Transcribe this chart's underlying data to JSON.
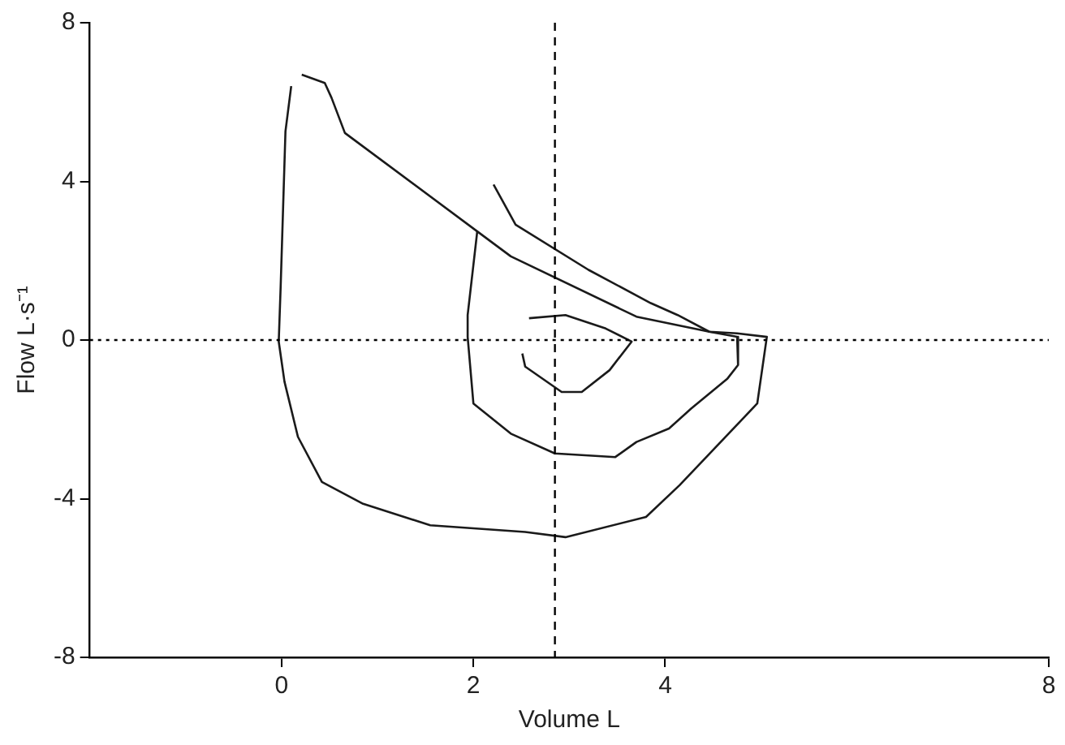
{
  "chart_data": {
    "type": "line",
    "xlabel": "Volume L",
    "ylabel": "Flow L·s⁻¹",
    "xlim": [
      -2,
      8
    ],
    "xticks": [
      0,
      2,
      4,
      8
    ],
    "ylim": [
      -8,
      8
    ],
    "yticks": [
      -8,
      -4,
      0,
      4,
      8
    ],
    "grid": false,
    "legend": false,
    "marker": "none",
    "line_style": "solid",
    "ref_lines": [
      {
        "axis": "x",
        "value": 2.85,
        "line_style": "dashed",
        "color": "#000000"
      },
      {
        "axis": "y",
        "value": 0,
        "line_style": "dotted",
        "color": "#000000"
      }
    ],
    "series": [
      {
        "color": "#1a1a1a",
        "x": [
          0.21,
          0.45,
          0.52,
          0.66,
          2.04,
          2.39,
          3.7,
          4.46,
          4.75,
          5.06,
          4.96,
          4.15,
          3.8,
          2.96,
          2.54,
          1.55,
          0.85,
          0.42,
          0.17,
          0.03,
          -0.03,
          -0.01,
          0.04,
          0.1
        ],
        "values": [
          6.69,
          6.48,
          6.11,
          5.22,
          2.74,
          2.11,
          0.59,
          0.21,
          0.17,
          0.08,
          -1.6,
          -3.66,
          -4.46,
          -4.97,
          -4.84,
          -4.67,
          -4.13,
          -3.58,
          -2.44,
          -1.05,
          -0.04,
          1.35,
          5.26,
          6.4
        ]
      },
      {
        "color": "#1a1a1a",
        "x": [
          2.21,
          2.44,
          3.2,
          3.85,
          4.13,
          4.46,
          4.75,
          4.76,
          4.65,
          4.27,
          4.04,
          3.7,
          3.48,
          2.85,
          2.39,
          2.0,
          1.94,
          1.94,
          2.04
        ],
        "values": [
          3.92,
          2.91,
          1.77,
          0.93,
          0.63,
          0.21,
          0.08,
          -0.63,
          -0.97,
          -1.73,
          -2.23,
          -2.57,
          -2.95,
          -2.86,
          -2.36,
          -1.6,
          0.08,
          0.63,
          2.74
        ]
      },
      {
        "color": "#1a1a1a",
        "x": [
          2.58,
          2.96,
          3.38,
          3.65,
          3.42,
          3.13,
          2.92,
          2.54,
          2.51
        ],
        "values": [
          0.55,
          0.63,
          0.29,
          -0.04,
          -0.76,
          -1.31,
          -1.31,
          -0.67,
          -0.34
        ]
      }
    ]
  }
}
